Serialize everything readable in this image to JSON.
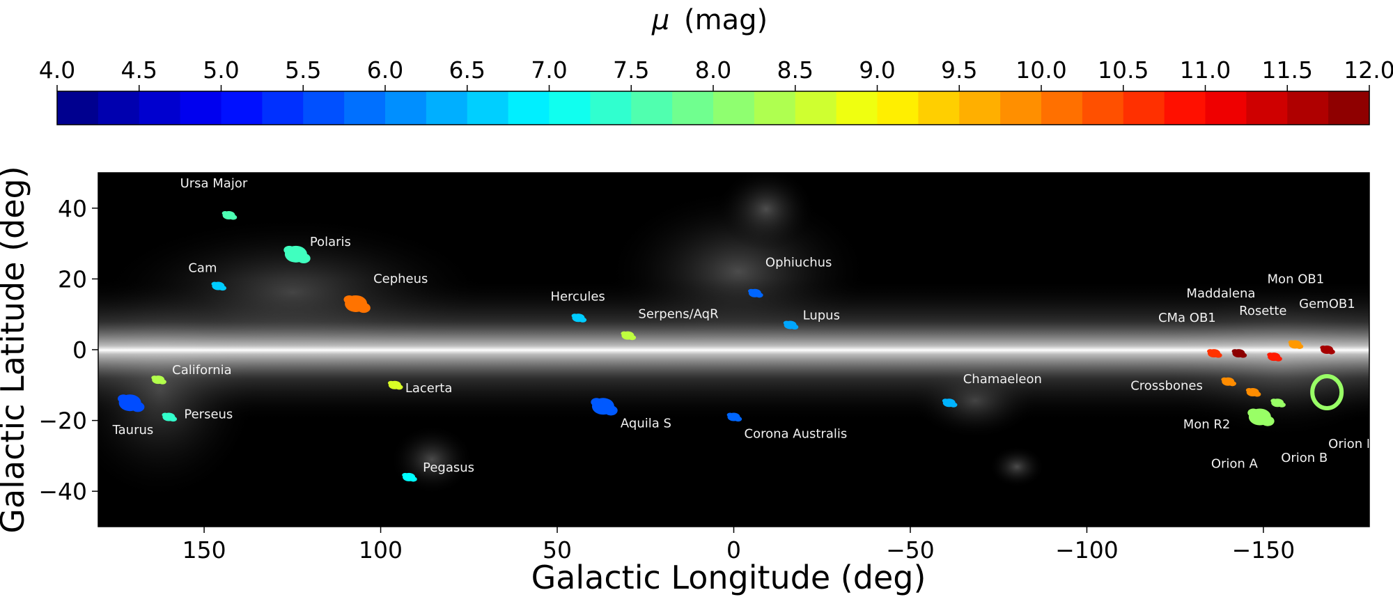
{
  "chart_data": {
    "type": "scatter",
    "title": "",
    "colorbar": {
      "label": "μ (mag)",
      "label_parts": {
        "symbol": "μ",
        "unit": "(mag)"
      },
      "min": 4.0,
      "max": 12.0,
      "step": 0.25,
      "ticks": [
        "4.0",
        "4.5",
        "5.0",
        "5.5",
        "6.0",
        "6.5",
        "7.0",
        "7.5",
        "8.0",
        "8.5",
        "9.0",
        "9.5",
        "10.0",
        "10.5",
        "11.0",
        "11.5",
        "12.0"
      ],
      "colormap": "jet"
    },
    "xlabel": "Galactic Longitude (deg)",
    "ylabel": "Galactic Latitude (deg)",
    "xlim": [
      180,
      -180
    ],
    "ylim": [
      -50,
      50
    ],
    "xticks": [
      150,
      100,
      50,
      0,
      -50,
      -100,
      -150
    ],
    "xtick_labels": [
      "150",
      "100",
      "50",
      "0",
      "−50",
      "−100",
      "−150"
    ],
    "yticks": [
      40,
      20,
      0,
      -20,
      -40
    ],
    "ytick_labels": [
      "40",
      "20",
      "0",
      "−20",
      "−40"
    ],
    "background": "grayscale dust map of the Galactic plane",
    "regions": [
      {
        "name": "Ursa Major",
        "l": 143,
        "b": 38,
        "mu": 7.6
      },
      {
        "name": "Polaris",
        "l": 124,
        "b": 27,
        "mu": 7.5
      },
      {
        "name": "Cam",
        "l": 146,
        "b": 18,
        "mu": 6.6
      },
      {
        "name": "Cepheus",
        "l": 107,
        "b": 13,
        "mu": 10.1
      },
      {
        "name": "California",
        "l": 163,
        "b": -8.5,
        "mu": 8.4
      },
      {
        "name": "Perseus",
        "l": 160,
        "b": -19,
        "mu": 7.4
      },
      {
        "name": "Taurus",
        "l": 171,
        "b": -15,
        "mu": 5.6
      },
      {
        "name": "Lacerta",
        "l": 96,
        "b": -10,
        "mu": 8.7
      },
      {
        "name": "Pegasus",
        "l": 92,
        "b": -36,
        "mu": 7.0
      },
      {
        "name": "Hercules",
        "l": 44,
        "b": 9,
        "mu": 6.6
      },
      {
        "name": "Serpens/AqR",
        "l": 30,
        "b": 4,
        "mu": 8.5
      },
      {
        "name": "Aquila S",
        "l": 37,
        "b": -16,
        "mu": 5.7
      },
      {
        "name": "Ophiuchus",
        "l": -6,
        "b": 16,
        "mu": 5.8
      },
      {
        "name": "Lupus",
        "l": -16,
        "b": 7,
        "mu": 6.3
      },
      {
        "name": "Corona Australis",
        "l": 0,
        "b": -19,
        "mu": 5.8
      },
      {
        "name": "Chamaeleon",
        "l": -61,
        "b": -15,
        "mu": 6.4
      },
      {
        "name": "CMa OB1",
        "l": -136,
        "b": -1,
        "mu": 10.6
      },
      {
        "name": "Maddalena",
        "l": -143,
        "b": -1,
        "mu": 11.9
      },
      {
        "name": "Rosette",
        "l": -153,
        "b": -2,
        "mu": 10.8
      },
      {
        "name": "Mon OB1",
        "l": -159,
        "b": 1.5,
        "mu": 9.8
      },
      {
        "name": "GemOB1",
        "l": -168,
        "b": 0,
        "mu": 11.7
      },
      {
        "name": "Crossbones",
        "l": -140,
        "b": -9,
        "mu": 9.9
      },
      {
        "name": "Mon R2",
        "l": -147,
        "b": -12,
        "mu": 9.9
      },
      {
        "name": "Orion A",
        "l": -149,
        "b": -19,
        "mu": 8.2
      },
      {
        "name": "Orion B",
        "l": -154,
        "b": -15,
        "mu": 8.2
      },
      {
        "name": "Orion Lam",
        "l": -168,
        "b": -12,
        "mu": 8.2
      }
    ]
  }
}
